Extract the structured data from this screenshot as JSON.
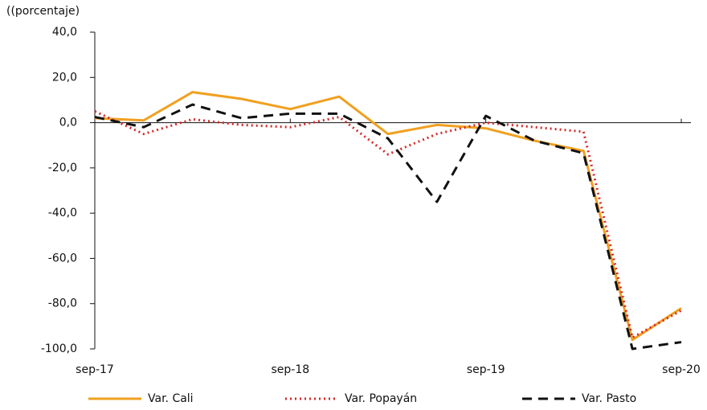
{
  "chart_data": {
    "type": "line",
    "y_axis_label": "((porcentaje)",
    "categories": [
      "sep-17",
      null,
      null,
      null,
      "sep-18",
      null,
      null,
      null,
      "sep-19",
      null,
      null,
      null,
      "sep-20"
    ],
    "series": [
      {
        "name": "Var. Cali",
        "color": "#f0a020",
        "dash": "solid",
        "values": [
          2,
          1,
          13.5,
          10.5,
          6,
          11.5,
          -5,
          -1,
          -2.5,
          -8,
          -12.5,
          -96,
          -82
        ]
      },
      {
        "name": "Var. Popayán",
        "color": "#d42a2a",
        "dash": "dotted",
        "values": [
          5,
          -5,
          1.5,
          -1,
          -2,
          2.5,
          -14,
          -5,
          0,
          -2,
          -4,
          -95,
          -83
        ]
      },
      {
        "name": "Var. Pasto",
        "color": "#111111",
        "dash": "dashed",
        "values": [
          2.5,
          -2,
          8,
          2,
          4,
          4,
          -7,
          -35,
          3,
          -8,
          -13.5,
          -100,
          -97
        ]
      }
    ],
    "ylim": [
      -100,
      40
    ],
    "yticks": [
      {
        "value": -100,
        "label": "-100,0"
      },
      {
        "value": -80,
        "label": "-80,0"
      },
      {
        "value": -60,
        "label": "-60,0"
      },
      {
        "value": -40,
        "label": "-40,0"
      },
      {
        "value": -20,
        "label": "-20,0"
      },
      {
        "value": 0,
        "label": "0,0"
      },
      {
        "value": 20,
        "label": "20,0"
      },
      {
        "value": 40,
        "label": "40,0"
      }
    ],
    "legend": "bottom"
  }
}
